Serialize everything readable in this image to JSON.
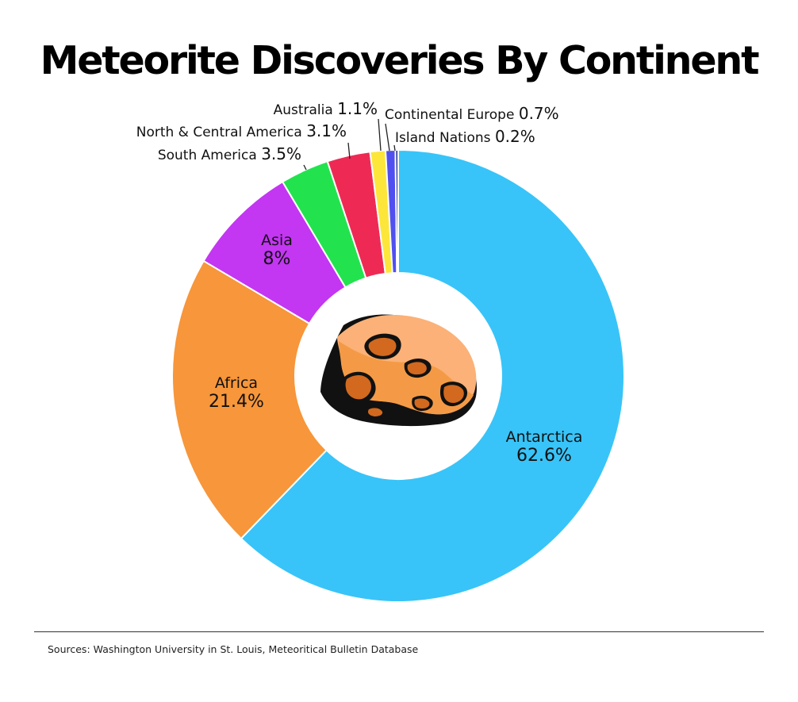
{
  "chart_data": {
    "type": "pie",
    "variant": "donut",
    "title": "Meteorite Discoveries By Continent",
    "slices": [
      {
        "label": "Antarctica",
        "value": 62.6,
        "value_label": "62.6%",
        "color": "#38c4f8"
      },
      {
        "label": "Africa",
        "value": 21.4,
        "value_label": "21.4%",
        "color": "#f7963a"
      },
      {
        "label": "Asia",
        "value": 8,
        "value_label": "8%",
        "color": "#c336f2"
      },
      {
        "label": "South America",
        "value": 3.5,
        "value_label": "3.5%",
        "color": "#22e34e"
      },
      {
        "label": "North & Central America",
        "value": 3.1,
        "value_label": "3.1%",
        "color": "#ee2a54"
      },
      {
        "label": "Australia",
        "value": 1.1,
        "value_label": "1.1%",
        "color": "#fde63a"
      },
      {
        "label": "Continental Europe",
        "value": 0.7,
        "value_label": "0.7%",
        "color": "#5050f0"
      },
      {
        "label": "Island Nations",
        "value": 0.2,
        "value_label": "0.2%",
        "color": "#1a2a8a"
      }
    ],
    "center_icon": "meteorite-icon"
  },
  "footer": {
    "source": "Sources: Washington University in St. Louis, Meteoritical Bulletin Database"
  }
}
